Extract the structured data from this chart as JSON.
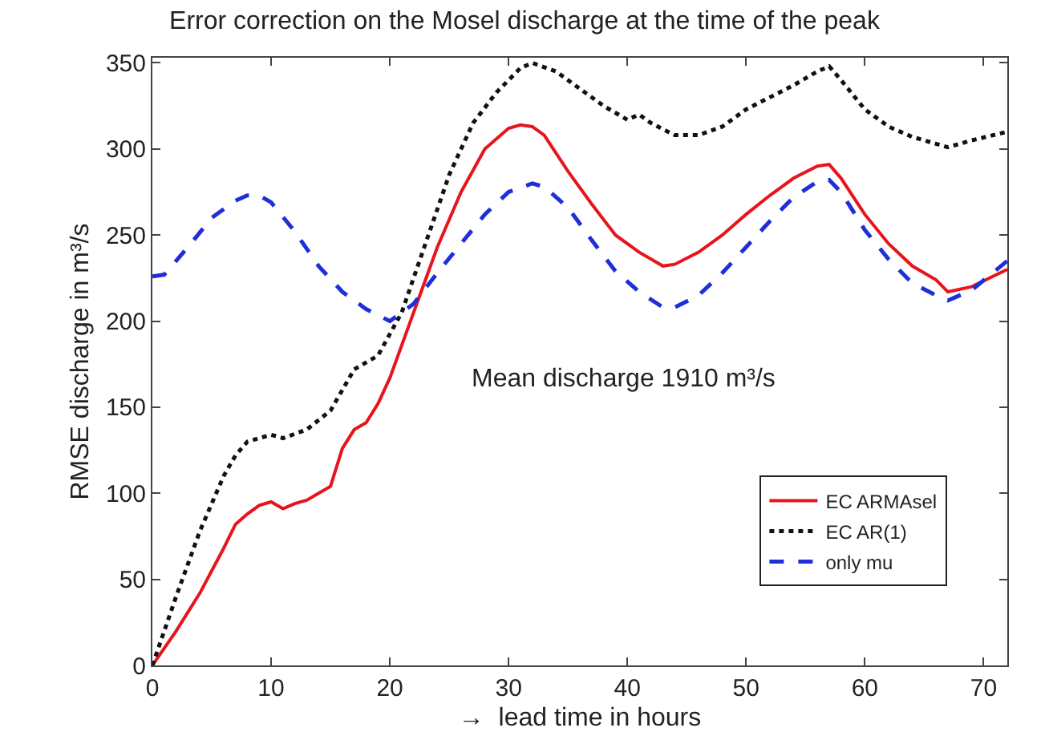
{
  "chart_data": {
    "type": "line",
    "title": "Error correction on the Mosel discharge at the time of the peak",
    "xlabel": "→  lead time in hours",
    "ylabel": "RMSE discharge in m³/s",
    "annotations": [
      "Mean discharge 1910 m³/s"
    ],
    "xlim": [
      0,
      72
    ],
    "xticks": [
      0,
      10,
      20,
      30,
      40,
      50,
      60,
      70
    ],
    "ylim": [
      0,
      353
    ],
    "yticks": [
      0,
      50,
      100,
      150,
      200,
      250,
      300,
      350
    ],
    "legend": "bottom right",
    "series": [
      {
        "name": "EC ARMAsel",
        "color": "#e8141c",
        "line_style": "solid",
        "x": [
          0,
          2,
          4,
          6,
          7,
          8,
          9,
          10,
          11,
          12,
          13,
          14,
          15,
          16,
          17,
          18,
          19,
          20,
          22,
          24,
          26,
          28,
          30,
          31,
          32,
          33,
          35,
          37,
          39,
          41,
          43,
          44,
          46,
          48,
          50,
          52,
          54,
          56,
          57,
          58,
          60,
          62,
          64,
          66,
          67,
          69,
          72
        ],
        "values": [
          0,
          20,
          42,
          68,
          82,
          88,
          93,
          95,
          91,
          94,
          96,
          100,
          104,
          126,
          137,
          141,
          152,
          167,
          205,
          243,
          275,
          300,
          312,
          314,
          313,
          308,
          287,
          268,
          250,
          240,
          232,
          233,
          240,
          250,
          262,
          273,
          283,
          290,
          291,
          283,
          262,
          245,
          232,
          224,
          217,
          220,
          230
        ]
      },
      {
        "name": "EC AR(1)",
        "color": "#111111",
        "line_style": "dotted",
        "x": [
          0,
          2,
          4,
          6,
          7,
          8,
          10,
          11,
          13,
          15,
          16,
          17,
          19,
          21,
          23,
          25,
          27,
          29,
          31,
          32,
          34,
          36,
          38,
          40,
          41,
          42,
          44,
          46,
          48,
          50,
          52,
          54,
          56,
          57,
          58,
          60,
          62,
          64,
          66,
          67,
          69,
          72
        ],
        "values": [
          0,
          40,
          78,
          110,
          122,
          130,
          134,
          132,
          137,
          148,
          160,
          172,
          180,
          205,
          245,
          285,
          315,
          333,
          347,
          350,
          345,
          335,
          325,
          317,
          320,
          315,
          308,
          308,
          313,
          323,
          330,
          337,
          345,
          348,
          340,
          323,
          313,
          307,
          303,
          301,
          305,
          310
        ]
      },
      {
        "name": "only mu",
        "color": "#1f2fd8",
        "line_style": "dashed",
        "x": [
          0,
          1,
          3,
          5,
          7,
          8,
          9,
          10,
          12,
          14,
          16,
          18,
          20,
          22,
          24,
          26,
          28,
          30,
          32,
          33,
          35,
          37,
          39,
          41,
          43,
          44,
          46,
          48,
          50,
          52,
          54,
          56,
          57,
          58,
          60,
          62,
          64,
          66,
          67,
          69,
          72
        ],
        "values": [
          226,
          227,
          243,
          260,
          270,
          273,
          273,
          269,
          252,
          232,
          217,
          207,
          200,
          210,
          228,
          245,
          262,
          275,
          280,
          278,
          266,
          247,
          229,
          217,
          208,
          208,
          215,
          228,
          243,
          258,
          272,
          281,
          282,
          275,
          253,
          236,
          222,
          215,
          212,
          218,
          235
        ]
      }
    ]
  }
}
